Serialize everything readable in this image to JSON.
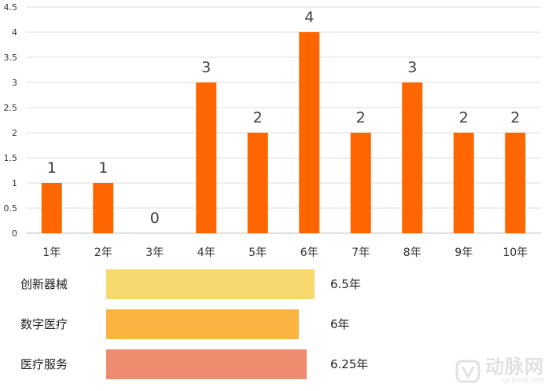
{
  "chart_data": [
    {
      "type": "bar",
      "categories": [
        "1年",
        "2年",
        "3年",
        "4年",
        "5年",
        "6年",
        "7年",
        "8年",
        "9年",
        "10年"
      ],
      "values": [
        1,
        1,
        0,
        3,
        2,
        4,
        2,
        3,
        2,
        2
      ],
      "data_labels": [
        "1",
        "1",
        "0",
        "3",
        "2",
        "4",
        "2",
        "3",
        "2",
        "2"
      ],
      "ylim": [
        0,
        4.5
      ],
      "yticks": [
        "0",
        "0.5",
        "1",
        "1.5",
        "2",
        "2.5",
        "3",
        "3.5",
        "4",
        "4.5"
      ],
      "grid": true,
      "color": "#ff6600"
    },
    {
      "type": "bar",
      "orientation": "horizontal",
      "items": [
        {
          "label": "创新器械",
          "value": 6.5,
          "value_label": "6.5年",
          "color": "#f6d86c"
        },
        {
          "label": "数字医疗",
          "value": 6,
          "value_label": "6年",
          "color": "#fbb441"
        },
        {
          "label": "医疗服务",
          "value": 6.25,
          "value_label": "6.25年",
          "color": "#ee8b6e"
        }
      ]
    }
  ],
  "watermark": {
    "main": "动脉网",
    "sub": "vcbeat.net"
  }
}
